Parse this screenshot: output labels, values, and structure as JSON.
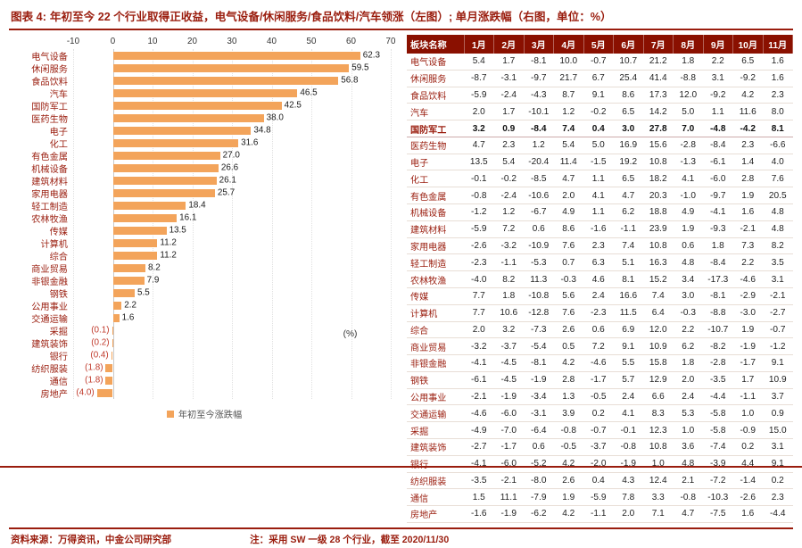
{
  "title": {
    "label": "图表 4:",
    "text": "年初至今 22 个行业取得正收益，电气设备/休闲服务/食品饮料/汽车领涨（左图）; 单月涨跌幅（右图，单位：%）"
  },
  "colors": {
    "accent_red": "#9A1D0E",
    "header_bg": "#8A1000",
    "bar_orange": "#F3A45B",
    "negative_label": "#C03A2B"
  },
  "chart_data": {
    "type": "bar",
    "orientation": "horizontal",
    "categories": [
      "电气设备",
      "休闲服务",
      "食品饮料",
      "汽车",
      "国防军工",
      "医药生物",
      "电子",
      "化工",
      "有色金属",
      "机械设备",
      "建筑材料",
      "家用电器",
      "轻工制造",
      "农林牧渔",
      "传媒",
      "计算机",
      "综合",
      "商业贸易",
      "非银金融",
      "钢铁",
      "公用事业",
      "交通运输",
      "采掘",
      "建筑装饰",
      "银行",
      "纺织服装",
      "通信",
      "房地产"
    ],
    "values": [
      62.3,
      59.5,
      56.8,
      46.5,
      42.5,
      38.0,
      34.8,
      31.6,
      27.0,
      26.6,
      26.1,
      25.7,
      18.4,
      16.1,
      13.5,
      11.2,
      11.2,
      8.2,
      7.9,
      5.5,
      2.2,
      1.6,
      -0.1,
      -0.2,
      -0.4,
      -1.8,
      -1.8,
      -4.0
    ],
    "xlim": [
      -10,
      70
    ],
    "xticks": [
      -10,
      0,
      10,
      20,
      30,
      40,
      50,
      60,
      70
    ],
    "grid": "vertical",
    "legend": "年初至今涨跌幅",
    "legend_position": "bottom",
    "unit": "(%)"
  },
  "table": {
    "columns": [
      "板块名称",
      "1月",
      "2月",
      "3月",
      "4月",
      "5月",
      "6月",
      "7月",
      "8月",
      "9月",
      "10月",
      "11月"
    ],
    "highlight_row": "国防军工",
    "rows": [
      {
        "name": "电气设备",
        "values": [
          5.4,
          1.7,
          -8.1,
          10.0,
          -0.7,
          10.7,
          21.2,
          1.8,
          2.2,
          6.5,
          1.6
        ]
      },
      {
        "name": "休闲服务",
        "values": [
          -8.7,
          -3.1,
          -9.7,
          21.7,
          6.7,
          25.4,
          41.4,
          -8.8,
          3.1,
          -9.2,
          1.6
        ]
      },
      {
        "name": "食品饮料",
        "values": [
          -5.9,
          -2.4,
          -4.3,
          8.7,
          9.1,
          8.6,
          17.3,
          12.0,
          -9.2,
          4.2,
          2.3
        ]
      },
      {
        "name": "汽车",
        "values": [
          2.0,
          1.7,
          -10.1,
          1.2,
          -0.2,
          6.5,
          14.2,
          5.0,
          1.1,
          11.6,
          8.0
        ]
      },
      {
        "name": "国防军工",
        "values": [
          3.2,
          0.9,
          -8.4,
          7.4,
          0.4,
          3.0,
          27.8,
          7.0,
          -4.8,
          -4.2,
          8.1
        ]
      },
      {
        "name": "医药生物",
        "values": [
          4.7,
          2.3,
          1.2,
          5.4,
          5.0,
          16.9,
          15.6,
          -2.8,
          -8.4,
          2.3,
          -6.6
        ]
      },
      {
        "name": "电子",
        "values": [
          13.5,
          5.4,
          -20.4,
          11.4,
          -1.5,
          19.2,
          10.8,
          -1.3,
          -6.1,
          1.4,
          4.0
        ]
      },
      {
        "name": "化工",
        "values": [
          -0.1,
          -0.2,
          -8.5,
          4.7,
          1.1,
          6.5,
          18.2,
          4.1,
          -6.0,
          2.8,
          7.6
        ]
      },
      {
        "name": "有色金属",
        "values": [
          -0.8,
          -2.4,
          -10.6,
          2.0,
          4.1,
          4.7,
          20.3,
          -1.0,
          -9.7,
          1.9,
          20.5
        ]
      },
      {
        "name": "机械设备",
        "values": [
          -1.2,
          1.2,
          -6.7,
          4.9,
          1.1,
          6.2,
          18.8,
          4.9,
          -4.1,
          1.6,
          4.8
        ]
      },
      {
        "name": "建筑材料",
        "values": [
          -5.9,
          7.2,
          0.6,
          8.6,
          -1.6,
          -1.1,
          23.9,
          1.9,
          -9.3,
          -2.1,
          4.8
        ]
      },
      {
        "name": "家用电器",
        "values": [
          -2.6,
          -3.2,
          -10.9,
          7.6,
          2.3,
          7.4,
          10.8,
          0.6,
          1.8,
          7.3,
          8.2
        ]
      },
      {
        "name": "轻工制造",
        "values": [
          -2.3,
          -1.1,
          -5.3,
          0.7,
          6.3,
          5.1,
          16.3,
          4.8,
          -8.4,
          2.2,
          3.5
        ]
      },
      {
        "name": "农林牧渔",
        "values": [
          -4.0,
          8.2,
          11.3,
          -0.3,
          4.6,
          8.1,
          15.2,
          3.4,
          -17.3,
          -4.6,
          3.1
        ]
      },
      {
        "name": "传媒",
        "values": [
          7.7,
          1.8,
          -10.8,
          5.6,
          2.4,
          16.6,
          7.4,
          3.0,
          -8.1,
          -2.9,
          -2.1
        ]
      },
      {
        "name": "计算机",
        "values": [
          7.7,
          10.6,
          -12.8,
          7.6,
          -2.3,
          11.5,
          6.4,
          -0.3,
          -8.8,
          -3.0,
          -2.7
        ]
      },
      {
        "name": "综合",
        "values": [
          2.0,
          3.2,
          -7.3,
          2.6,
          0.6,
          6.9,
          12.0,
          2.2,
          -10.7,
          1.9,
          -0.7
        ]
      },
      {
        "name": "商业贸易",
        "values": [
          -3.2,
          -3.7,
          -5.4,
          0.5,
          7.2,
          9.1,
          10.9,
          6.2,
          -8.2,
          -1.9,
          -1.2
        ]
      },
      {
        "name": "非银金融",
        "values": [
          -4.1,
          -4.5,
          -8.1,
          4.2,
          -4.6,
          5.5,
          15.8,
          1.8,
          -2.8,
          -1.7,
          9.1
        ]
      },
      {
        "name": "钢铁",
        "values": [
          -6.1,
          -4.5,
          -1.9,
          2.8,
          -1.7,
          5.7,
          12.9,
          2.0,
          -3.5,
          1.7,
          10.9
        ]
      },
      {
        "name": "公用事业",
        "values": [
          -2.1,
          -1.9,
          -3.4,
          1.3,
          -0.5,
          2.4,
          6.6,
          2.4,
          -4.4,
          -1.1,
          3.7
        ]
      },
      {
        "name": "交通运输",
        "values": [
          -4.6,
          -6.0,
          -3.1,
          3.9,
          0.2,
          4.1,
          8.3,
          5.3,
          -5.8,
          1.0,
          0.9
        ]
      },
      {
        "name": "采掘",
        "values": [
          -4.9,
          -7.0,
          -6.4,
          -0.8,
          -0.7,
          -0.1,
          12.3,
          1.0,
          -5.8,
          -0.9,
          15.0
        ]
      },
      {
        "name": "建筑装饰",
        "values": [
          -2.7,
          -1.7,
          0.6,
          -0.5,
          -3.7,
          -0.8,
          10.8,
          3.6,
          -7.4,
          0.2,
          3.1
        ]
      },
      {
        "name": "银行",
        "values": [
          -4.1,
          -6.0,
          -5.2,
          4.2,
          -2.0,
          -1.9,
          1.0,
          4.8,
          -3.9,
          4.4,
          9.1
        ]
      },
      {
        "name": "纺织服装",
        "values": [
          -3.5,
          -2.1,
          -8.0,
          2.6,
          0.4,
          4.3,
          12.4,
          2.1,
          -7.2,
          -1.4,
          0.2
        ]
      },
      {
        "name": "通信",
        "values": [
          1.5,
          11.1,
          -7.9,
          1.9,
          -5.9,
          7.8,
          3.3,
          -0.8,
          -10.3,
          -2.6,
          2.3
        ]
      },
      {
        "name": "房地产",
        "values": [
          -1.6,
          -1.9,
          -6.2,
          4.2,
          -1.1,
          2.0,
          7.1,
          4.7,
          -7.5,
          1.6,
          -4.4
        ]
      }
    ]
  },
  "footer": {
    "source": "资料来源：万得资讯，中金公司研究部",
    "note": "注：采用 SW 一级 28 个行业，截至 2020/11/30"
  }
}
